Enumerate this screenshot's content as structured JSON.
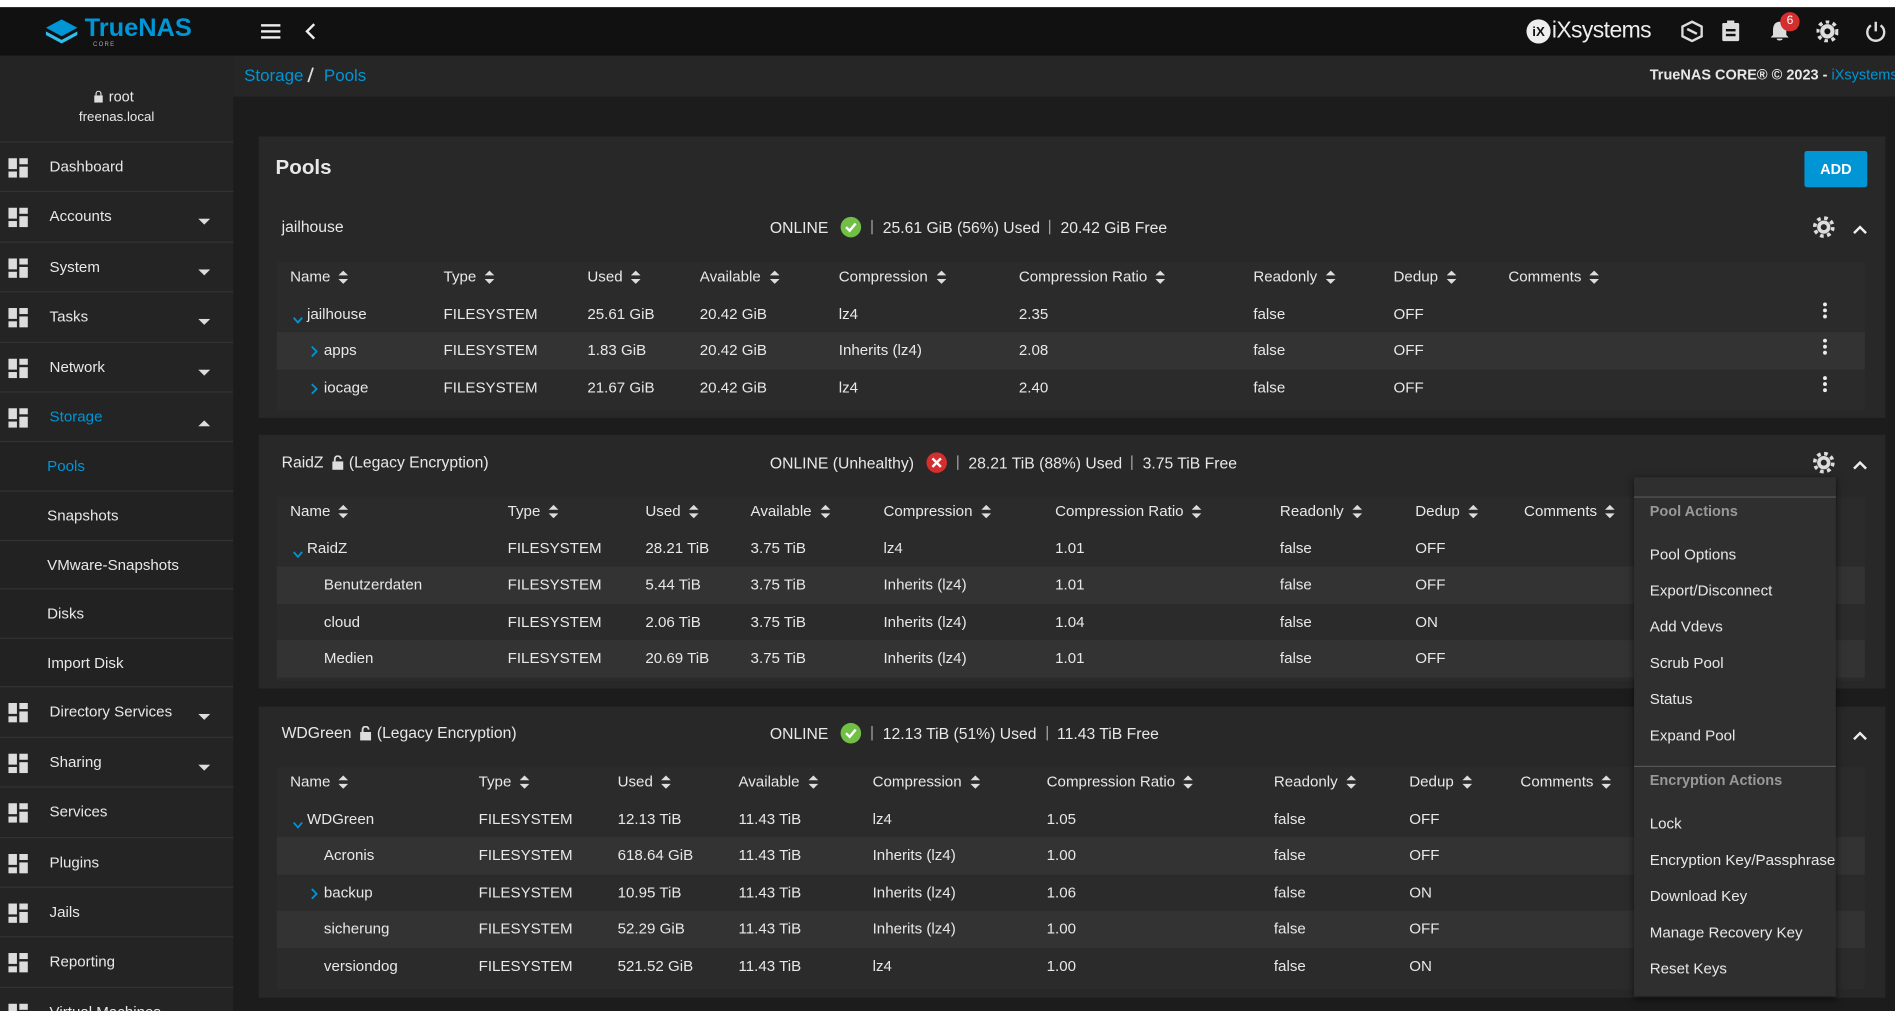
{
  "header": {
    "brand": "TrueNAS",
    "brand_edition": "CORE",
    "vendor": "iXsystems",
    "notifications": 6
  },
  "user": {
    "name": "root",
    "host": "freenas.local"
  },
  "nav": [
    {
      "label": "Dashboard"
    },
    {
      "label": "Accounts",
      "submenu": true
    },
    {
      "label": "System",
      "submenu": true
    },
    {
      "label": "Tasks",
      "submenu": true
    },
    {
      "label": "Network",
      "submenu": true
    },
    {
      "label": "Storage",
      "submenu": true,
      "open": true,
      "children": [
        "Pools",
        "Snapshots",
        "VMware-Snapshots",
        "Disks",
        "Import Disk"
      ],
      "active_child": 0
    },
    {
      "label": "Directory Services",
      "submenu": true
    },
    {
      "label": "Sharing",
      "submenu": true
    },
    {
      "label": "Services"
    },
    {
      "label": "Plugins"
    },
    {
      "label": "Jails"
    },
    {
      "label": "Reporting"
    },
    {
      "label": "Virtual Machines"
    }
  ],
  "breadcrumb": [
    "Storage",
    "Pools"
  ],
  "copyright": "TrueNAS CORE® © 2023 - ",
  "copyright_link": "iXsystems, In",
  "page": {
    "title": "Pools",
    "add_button": "ADD"
  },
  "columns": [
    "Name",
    "Type",
    "Used",
    "Available",
    "Compression",
    "Compression Ratio",
    "Readonly",
    "Dedup",
    "Comments"
  ],
  "pools": [
    {
      "name": "jailhouse",
      "encryption": null,
      "status": "ONLINE",
      "healthy": true,
      "used": "25.61 GiB (56%) Used",
      "free": "20.42 GiB Free",
      "rows": [
        {
          "toggle": "open",
          "level": 0,
          "cells": [
            "jailhouse",
            "FILESYSTEM",
            "25.61 GiB",
            "20.42 GiB",
            "lz4",
            "2.35",
            "false",
            "OFF"
          ]
        },
        {
          "toggle": "closed",
          "level": 1,
          "cells": [
            "apps",
            "FILESYSTEM",
            "1.83 GiB",
            "20.42 GiB",
            "Inherits (lz4)",
            "2.08",
            "false",
            "OFF"
          ]
        },
        {
          "toggle": "closed",
          "level": 1,
          "cells": [
            "iocage",
            "FILESYSTEM",
            "21.67 GiB",
            "20.42 GiB",
            "lz4",
            "2.40",
            "false",
            "OFF"
          ]
        }
      ]
    },
    {
      "name": "RaidZ",
      "encryption": "(Legacy Encryption)",
      "status": "ONLINE (Unhealthy)",
      "healthy": false,
      "used": "28.21 TiB (88%) Used",
      "free": "3.75 TiB Free",
      "rows": [
        {
          "toggle": "open",
          "level": 0,
          "cells": [
            "RaidZ",
            "FILESYSTEM",
            "28.21 TiB",
            "3.75 TiB",
            "lz4",
            "1.01",
            "false",
            "OFF"
          ]
        },
        {
          "toggle": null,
          "level": 1,
          "cells": [
            "Benutzerdaten",
            "FILESYSTEM",
            "5.44 TiB",
            "3.75 TiB",
            "Inherits (lz4)",
            "1.01",
            "false",
            "OFF"
          ]
        },
        {
          "toggle": null,
          "level": 1,
          "cells": [
            "cloud",
            "FILESYSTEM",
            "2.06 TiB",
            "3.75 TiB",
            "Inherits (lz4)",
            "1.04",
            "false",
            "ON"
          ]
        },
        {
          "toggle": null,
          "level": 1,
          "cells": [
            "Medien",
            "FILESYSTEM",
            "20.69 TiB",
            "3.75 TiB",
            "Inherits (lz4)",
            "1.01",
            "false",
            "OFF"
          ]
        }
      ]
    },
    {
      "name": "WDGreen",
      "encryption": "(Legacy Encryption)",
      "status": "ONLINE",
      "healthy": true,
      "used": "12.13 TiB (51%) Used",
      "free": "11.43 TiB Free",
      "rows": [
        {
          "toggle": "open",
          "level": 0,
          "cells": [
            "WDGreen",
            "FILESYSTEM",
            "12.13 TiB",
            "11.43 TiB",
            "lz4",
            "1.05",
            "false",
            "OFF"
          ]
        },
        {
          "toggle": null,
          "level": 1,
          "cells": [
            "Acronis",
            "FILESYSTEM",
            "618.64 GiB",
            "11.43 TiB",
            "Inherits (lz4)",
            "1.00",
            "false",
            "OFF"
          ]
        },
        {
          "toggle": "closed",
          "level": 1,
          "cells": [
            "backup",
            "FILESYSTEM",
            "10.95 TiB",
            "11.43 TiB",
            "Inherits (lz4)",
            "1.06",
            "false",
            "ON"
          ]
        },
        {
          "toggle": null,
          "level": 1,
          "cells": [
            "sicherung",
            "FILESYSTEM",
            "52.29 GiB",
            "11.43 TiB",
            "Inherits (lz4)",
            "1.00",
            "false",
            "OFF"
          ]
        },
        {
          "toggle": null,
          "level": 1,
          "cells": [
            "versiondog",
            "FILESYSTEM",
            "521.52 GiB",
            "11.43 TiB",
            "lz4",
            "1.00",
            "false",
            "ON"
          ]
        }
      ]
    }
  ],
  "menu": {
    "sections": [
      {
        "title": "Pool Actions",
        "items": [
          "Pool Options",
          "Export/Disconnect",
          "Add Vdevs",
          "Scrub Pool",
          "Status",
          "Expand Pool"
        ]
      },
      {
        "title": "Encryption Actions",
        "items": [
          "Lock",
          "Encryption Key/Passphrase",
          "Download Key",
          "Manage Recovery Key",
          "Reset Keys"
        ]
      }
    ]
  }
}
